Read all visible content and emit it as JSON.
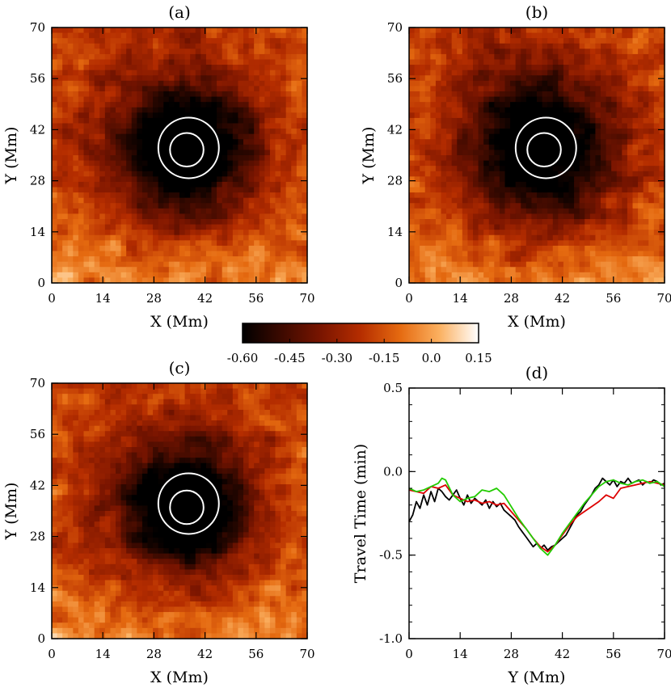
{
  "chart_data": {
    "type": "heatmap",
    "units": {
      "x": "Mm",
      "y": "Mm"
    },
    "map_panels": [
      {
        "id": "a",
        "title": "(a)",
        "xlabel": "X (Mm)",
        "ylabel": "Y (Mm)",
        "xlim": [
          0,
          70
        ],
        "ylim": [
          0,
          70
        ],
        "seed": 11,
        "spot_depth": -0.55,
        "spot_center": [
          37,
          37
        ],
        "spot_radius_mm": 13,
        "contours": {
          "umbra": {
            "cx": 37,
            "cy": 36.5,
            "r": 4.6
          },
          "penumbra": {
            "cx": 37.5,
            "cy": 37,
            "r": 8.3
          }
        }
      },
      {
        "id": "b",
        "title": "(b)",
        "xlabel": "X (Mm)",
        "ylabel": "Y (Mm)",
        "xlim": [
          0,
          70
        ],
        "ylim": [
          0,
          70
        ],
        "seed": 23,
        "spot_depth": -0.52,
        "spot_center": [
          37,
          37
        ],
        "spot_radius_mm": 14,
        "contours": {
          "umbra": {
            "cx": 37,
            "cy": 36.5,
            "r": 4.6
          },
          "penumbra": {
            "cx": 37.5,
            "cy": 37,
            "r": 8.3
          }
        }
      },
      {
        "id": "c",
        "title": "(c)",
        "xlabel": "X (Mm)",
        "ylabel": "Y (Mm)",
        "xlim": [
          0,
          70
        ],
        "ylim": [
          0,
          70
        ],
        "seed": 37,
        "spot_depth": -0.58,
        "spot_center": [
          37,
          36
        ],
        "spot_radius_mm": 12,
        "contours": {
          "umbra": {
            "cx": 37,
            "cy": 36,
            "r": 4.6
          },
          "penumbra": {
            "cx": 37.5,
            "cy": 37,
            "r": 8.3
          }
        }
      }
    ],
    "x_ticks": [
      "0",
      "14",
      "28",
      "42",
      "56",
      "70"
    ],
    "y_ticks": [
      "0",
      "14",
      "28",
      "42",
      "56",
      "70"
    ],
    "colorbar": {
      "range": [
        -0.6,
        0.15
      ],
      "ticks": [
        "-0.60",
        "-0.45",
        "-0.30",
        "-0.15",
        "0.0",
        "0.15"
      ],
      "tick_values": [
        -0.6,
        -0.45,
        -0.3,
        -0.15,
        0.0,
        0.15
      ],
      "colors": [
        "#000000",
        "#3d0a00",
        "#7a1500",
        "#b52d00",
        "#e56a10",
        "#fbb060",
        "#ffffff"
      ]
    },
    "line_panel": {
      "id": "d",
      "title": "(d)",
      "type": "line",
      "xlabel": "Y (Mm)",
      "ylabel": "Travel Time (min)",
      "xlim": [
        0,
        70
      ],
      "ylim": [
        -1.0,
        0.5
      ],
      "x_ticks": [
        "0",
        "14",
        "28",
        "42",
        "56",
        "70"
      ],
      "y_ticks": [
        "0.5",
        "0.0",
        "-0.5",
        "-1.0"
      ],
      "y_tick_values": [
        0.5,
        0.0,
        -0.5,
        -1.0
      ],
      "series": [
        {
          "name": "black",
          "color": "#000000",
          "x": [
            0,
            1,
            2,
            3,
            4,
            5,
            6,
            7,
            8,
            9,
            10,
            11,
            12,
            13,
            14,
            15,
            16,
            17,
            18,
            19,
            20,
            21,
            22,
            23,
            24,
            25,
            26,
            27,
            28,
            29,
            30,
            31,
            32,
            33,
            34,
            35,
            36,
            37,
            38,
            39,
            40,
            41,
            42,
            43,
            44,
            45,
            46,
            47,
            48,
            49,
            50,
            51,
            52,
            53,
            54,
            55,
            56,
            57,
            58,
            59,
            60,
            61,
            62,
            63,
            64,
            65,
            66,
            67,
            68,
            69,
            70
          ],
          "y": [
            -0.3,
            -0.26,
            -0.18,
            -0.22,
            -0.14,
            -0.2,
            -0.12,
            -0.18,
            -0.1,
            -0.12,
            -0.15,
            -0.17,
            -0.14,
            -0.11,
            -0.16,
            -0.2,
            -0.14,
            -0.19,
            -0.16,
            -0.18,
            -0.2,
            -0.17,
            -0.22,
            -0.18,
            -0.21,
            -0.19,
            -0.23,
            -0.25,
            -0.27,
            -0.29,
            -0.33,
            -0.36,
            -0.39,
            -0.42,
            -0.45,
            -0.43,
            -0.46,
            -0.44,
            -0.47,
            -0.45,
            -0.44,
            -0.42,
            -0.4,
            -0.38,
            -0.34,
            -0.3,
            -0.26,
            -0.24,
            -0.2,
            -0.17,
            -0.14,
            -0.1,
            -0.08,
            -0.04,
            -0.06,
            -0.08,
            -0.05,
            -0.09,
            -0.06,
            -0.07,
            -0.04,
            -0.07,
            -0.06,
            -0.05,
            -0.08,
            -0.06,
            -0.07,
            -0.05,
            -0.06,
            -0.08,
            -0.07
          ]
        },
        {
          "name": "red",
          "color": "#dd0000",
          "x": [
            0,
            2,
            4,
            6,
            8,
            10,
            12,
            14,
            16,
            18,
            20,
            22,
            24,
            26,
            28,
            30,
            32,
            34,
            36,
            38,
            40,
            42,
            44,
            46,
            48,
            50,
            52,
            54,
            56,
            58,
            60,
            62,
            64,
            66,
            68,
            70
          ],
          "y": [
            -0.11,
            -0.12,
            -0.13,
            -0.09,
            -0.1,
            -0.08,
            -0.14,
            -0.16,
            -0.18,
            -0.17,
            -0.19,
            -0.18,
            -0.2,
            -0.19,
            -0.24,
            -0.29,
            -0.34,
            -0.4,
            -0.45,
            -0.48,
            -0.44,
            -0.38,
            -0.32,
            -0.27,
            -0.24,
            -0.21,
            -0.18,
            -0.14,
            -0.16,
            -0.1,
            -0.09,
            -0.08,
            -0.07,
            -0.06,
            -0.07,
            -0.08
          ]
        },
        {
          "name": "green",
          "color": "#22cc00",
          "x": [
            0,
            2,
            4,
            6,
            8,
            9,
            10,
            12,
            14,
            16,
            18,
            20,
            22,
            24,
            26,
            28,
            30,
            32,
            34,
            36,
            38,
            40,
            42,
            44,
            46,
            48,
            50,
            52,
            54,
            56,
            58,
            60,
            62,
            64,
            66,
            68,
            70
          ],
          "y": [
            -0.1,
            -0.12,
            -0.11,
            -0.09,
            -0.07,
            -0.04,
            -0.05,
            -0.14,
            -0.18,
            -0.16,
            -0.15,
            -0.11,
            -0.12,
            -0.1,
            -0.14,
            -0.21,
            -0.28,
            -0.34,
            -0.4,
            -0.46,
            -0.5,
            -0.44,
            -0.37,
            -0.31,
            -0.25,
            -0.19,
            -0.14,
            -0.09,
            -0.06,
            -0.05,
            -0.07,
            -0.08,
            -0.06,
            -0.05,
            -0.07,
            -0.06,
            -0.09
          ]
        }
      ]
    }
  }
}
